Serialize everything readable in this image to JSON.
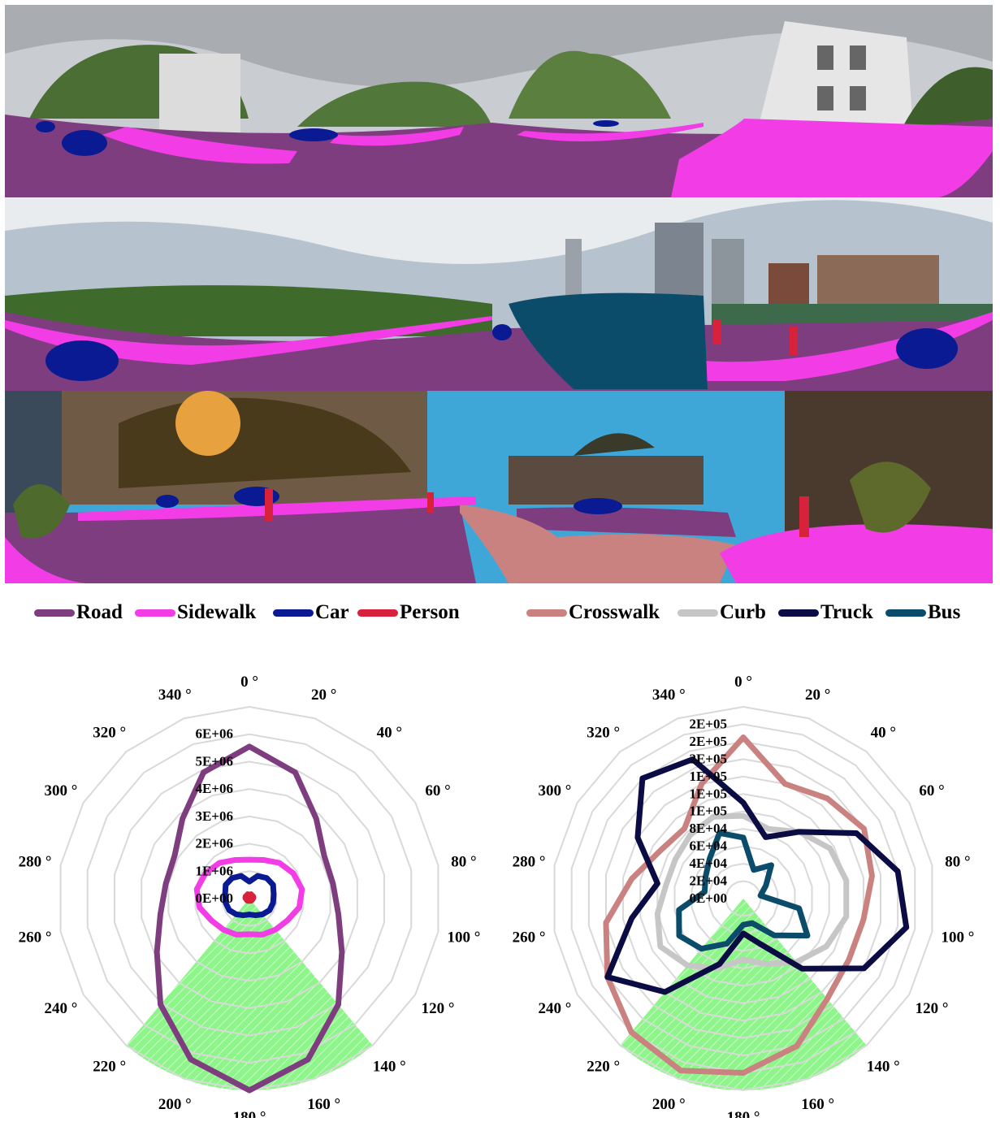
{
  "legend": [
    {
      "label": "Road",
      "color": "#7e3d7f"
    },
    {
      "label": "Sidewalk",
      "color": "#f23ce6"
    },
    {
      "label": "Car",
      "color": "#0a1a93"
    },
    {
      "label": "Person",
      "color": "#d8213a"
    },
    {
      "label": "Crosswalk",
      "color": "#c98280"
    },
    {
      "label": "Curb",
      "color": "#c6c6c6"
    },
    {
      "label": "Truck",
      "color": "#0c0c45"
    },
    {
      "label": "Bus",
      "color": "#0c4c6b"
    }
  ],
  "panoramas": [
    {
      "scene": "suburban street with white houses and trees",
      "sky_color": "#c9ccd0",
      "vegetation_color": "#4b6e35",
      "building_color": "#dcdcdc"
    },
    {
      "scene": "city park with skyline and large bus",
      "sky_color": "#b7c2cf",
      "vegetation_color": "#3e6a2c",
      "building_color": "#8c6a58"
    },
    {
      "scene": "dusk street with shops and crosswalk",
      "sky_color": "#3fa7d8",
      "vegetation_color": "#4a3a1c",
      "building_color": "#5a4a40"
    }
  ],
  "colors": {
    "road": "#7e3d7f",
    "sidewalk": "#f23ce6",
    "car": "#0a1a93",
    "person": "#d8213a",
    "crosswalk": "#c98280",
    "truck": "#0c0c45",
    "bus": "#0c4c6b",
    "grid": "#d9d9d9",
    "highlight": "#8ef58a"
  },
  "chart_data": [
    {
      "type": "radar",
      "angles": [
        0,
        20,
        40,
        60,
        80,
        100,
        120,
        140,
        160,
        180,
        200,
        220,
        240,
        260,
        280,
        300,
        320,
        340
      ],
      "angle_labels": [
        "0 °",
        "20 °",
        "40 °",
        "60 °",
        "80 °",
        "100 °",
        "120 °",
        "140 °",
        "160 °",
        "180 °",
        "200 °",
        "220 °",
        "240 °",
        "260 °",
        "280 °",
        "300 °",
        "320 °",
        "340 °"
      ],
      "radial_ticks": [
        0,
        1000000,
        2000000,
        3000000,
        4000000,
        5000000,
        6000000
      ],
      "radial_tick_labels": [
        "0E+00",
        "1E+06",
        "2E+06",
        "3E+06",
        "4E+06",
        "5E+06",
        "6E+06"
      ],
      "rmax": 7000000,
      "highlight_sector": [
        140,
        220
      ],
      "series": [
        {
          "name": "Road",
          "color": "#7e3d7f",
          "values": [
            5550000,
            4900000,
            3800000,
            3150000,
            3100000,
            3300000,
            3900000,
            5050000,
            6250000,
            7000000,
            6250000,
            5050000,
            3900000,
            3300000,
            3100000,
            3150000,
            3800000,
            4900000
          ]
        },
        {
          "name": "Sidewalk",
          "color": "#f23ce6",
          "values": [
            1420000,
            1500000,
            1700000,
            1850000,
            1950000,
            1850000,
            1600000,
            1480000,
            1400000,
            1300000,
            1400000,
            1480000,
            1600000,
            1850000,
            1950000,
            1850000,
            1700000,
            1500000
          ]
        },
        {
          "name": "Car",
          "color": "#0a1a93",
          "values": [
            620000,
            880000,
            980000,
            1000000,
            900000,
            880000,
            850000,
            750000,
            650000,
            580000,
            650000,
            750000,
            850000,
            880000,
            900000,
            1000000,
            980000,
            880000
          ]
        },
        {
          "name": "Person",
          "color": "#d8213a",
          "values": [
            120000,
            170000,
            150000,
            160000,
            150000,
            120000,
            110000,
            100000,
            90000,
            80000,
            90000,
            100000,
            110000,
            120000,
            150000,
            160000,
            150000,
            170000
          ]
        }
      ]
    },
    {
      "type": "radar",
      "angles": [
        0,
        20,
        40,
        60,
        80,
        100,
        120,
        140,
        160,
        180,
        200,
        220,
        240,
        260,
        280,
        300,
        320,
        340
      ],
      "angle_labels": [
        "0 °",
        "20 °",
        "40 °",
        "60 °",
        "80 °",
        "100 °",
        "120 °",
        "140 °",
        "160 °",
        "180 °",
        "200 °",
        "220 °",
        "240 °",
        "260 °",
        "280 °",
        "300 °",
        "320 °",
        "340 °"
      ],
      "radial_ticks": [
        0,
        20000,
        40000,
        60000,
        80000,
        100000,
        120000,
        140000,
        160000,
        180000,
        200000
      ],
      "radial_tick_labels": [
        "0E+00",
        "2E+04",
        "4E+04",
        "6E+04",
        "8E+04",
        "1E+05",
        "1E+05",
        "1E+05",
        "2E+05",
        "2E+05",
        "2E+05"
      ],
      "rmax": 220000,
      "highlight_sector": [
        140,
        220
      ],
      "series": [
        {
          "name": "Crosswalk",
          "color": "#c98280",
          "values": [
            185000,
            140000,
            150000,
            160000,
            150000,
            140000,
            140000,
            150000,
            180000,
            200000,
            210000,
            200000,
            180000,
            160000,
            130000,
            110000,
            105000,
            140000
          ]
        },
        {
          "name": "Curb",
          "color": "#c6c6c6",
          "values": [
            95000,
            85000,
            100000,
            115000,
            120000,
            120000,
            110000,
            95000,
            80000,
            70000,
            85000,
            100000,
            110000,
            100000,
            90000,
            90000,
            95000,
            100000
          ]
        },
        {
          "name": "Truck",
          "color": "#0c0c45",
          "values": [
            110000,
            75000,
            100000,
            150000,
            180000,
            190000,
            160000,
            105000,
            55000,
            40000,
            80000,
            140000,
            180000,
            130000,
            100000,
            140000,
            180000,
            170000
          ]
        },
        {
          "name": "Bus",
          "color": "#0c4c6b",
          "values": [
            70000,
            35000,
            50000,
            30000,
            20000,
            65000,
            85000,
            55000,
            30000,
            30000,
            55000,
            75000,
            85000,
            75000,
            45000,
            50000,
            60000,
            80000
          ]
        }
      ]
    }
  ]
}
